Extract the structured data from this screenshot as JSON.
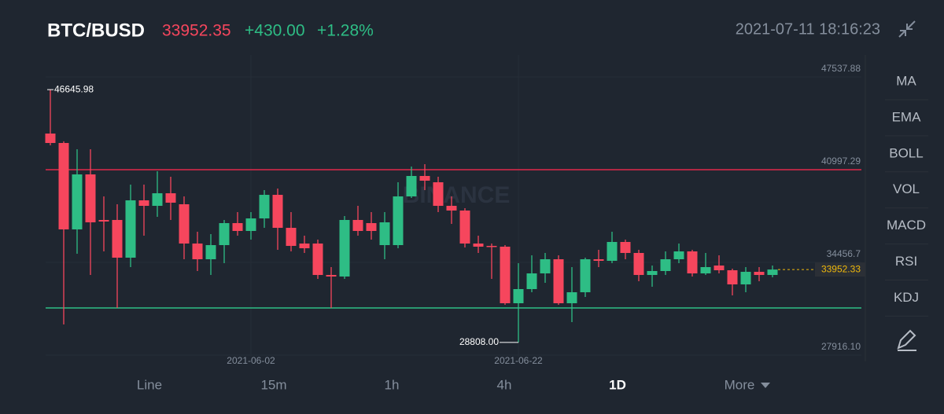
{
  "header": {
    "symbol": "BTC/BUSD",
    "price": "33952.35",
    "change": "+430.00",
    "change_pct": "+1.28%",
    "datetime": "2021-07-11 18:16:23"
  },
  "indicators": [
    "MA",
    "EMA",
    "BOLL",
    "VOL",
    "MACD",
    "RSI",
    "KDJ"
  ],
  "intervals": [
    "Line",
    "15m",
    "1h",
    "4h",
    "1D",
    "More"
  ],
  "active_interval": "1D",
  "chart_data": {
    "type": "candlestick",
    "watermark": "BINANCE",
    "categories": [
      null,
      null,
      null,
      null,
      null,
      null,
      null,
      null,
      null,
      null,
      null,
      null,
      null,
      null,
      null,
      "2021-06-02",
      null,
      null,
      null,
      null,
      null,
      null,
      null,
      null,
      null,
      null,
      null,
      null,
      null,
      null,
      null,
      null,
      null,
      null,
      null,
      "2021-06-22",
      null,
      null,
      null,
      null,
      null,
      null,
      null,
      null,
      null,
      null,
      null,
      null,
      null,
      null,
      null,
      null,
      null,
      null,
      null
    ],
    "open": [
      43547,
      42882,
      36784,
      40665,
      37450,
      37450,
      34789,
      38835,
      38447,
      39334,
      38558,
      35787,
      34678,
      35676,
      37228,
      36674,
      37560,
      39223,
      36895,
      35787,
      35787,
      33569,
      33459,
      37450,
      37228,
      35676,
      35676,
      39112,
      40554,
      40110,
      38447,
      38115,
      35787,
      35620,
      35565,
      31574,
      32572,
      33680,
      34678,
      31574,
      32350,
      34678,
      34567,
      35898,
      35122,
      33569,
      33847,
      34678,
      35232,
      33680,
      34235,
      33902,
      32904,
      33791,
      33569
    ],
    "high": [
      46645.98,
      43000,
      42438,
      42438,
      39112,
      38558,
      39944,
      39944,
      40886,
      40498,
      39112,
      36618,
      36452,
      37450,
      38004,
      38004,
      39556,
      39667,
      38004,
      36341,
      36064,
      34124,
      37727,
      38447,
      38004,
      38004,
      40110,
      41219,
      41385,
      40498,
      39112,
      38281,
      36341,
      35787,
      35676,
      34401,
      34955,
      35122,
      34955,
      34124,
      34789,
      35343,
      36618,
      36064,
      35343,
      34235,
      35232,
      35787,
      35343,
      35122,
      34955,
      34013,
      34124,
      34124,
      34235
    ],
    "low": [
      42715,
      30077,
      35066,
      33569,
      35232,
      31241,
      34124,
      36341,
      37671,
      37450,
      34678,
      33847,
      33569,
      34401,
      36341,
      36064,
      36895,
      35343,
      35232,
      35122,
      33292,
      31241,
      33292,
      36341,
      36064,
      34678,
      35454,
      39002,
      39556,
      38004,
      37172,
      35510,
      35122,
      33292,
      31463,
      28808,
      32350,
      33015,
      31463,
      30244,
      32017,
      34124,
      34401,
      34678,
      33126,
      32738,
      33569,
      34401,
      33459,
      33569,
      33680,
      32128,
      32350,
      33126,
      33403
    ],
    "close": [
      42882,
      36784,
      40665,
      37283,
      37339,
      34789,
      38835,
      38447,
      39334,
      38669,
      35787,
      34678,
      35676,
      37228,
      36674,
      37560,
      39223,
      36895,
      35620,
      35454,
      33569,
      33459,
      37450,
      36674,
      36674,
      37283,
      39112,
      40554,
      40221,
      38447,
      38115,
      35787,
      35565,
      35565,
      31574,
      32572,
      33680,
      34678,
      31574,
      32350,
      34678,
      34567,
      35898,
      35122,
      33569,
      33847,
      34678,
      35232,
      33680,
      34124,
      33902,
      32904,
      33791,
      33569,
      33952.33
    ],
    "up_color": "#2ebd85",
    "down_color": "#f6465d",
    "ylim": [
      27916.1,
      49090
    ],
    "yticks": [
      {
        "value": 27916.1,
        "label": "27916.10"
      },
      34456.7,
      40997.29,
      47537.88
    ],
    "grid": true,
    "lines": [
      {
        "value": 40997.29,
        "color": "#e0294a"
      },
      {
        "value": 31241,
        "color": "#2ebd85"
      }
    ],
    "max": {
      "value": 46645.98,
      "label": "46645.98"
    },
    "min": {
      "value": 28808,
      "label": "28808.00"
    },
    "last": {
      "value": 33952.33,
      "label": "33952.33"
    }
  }
}
